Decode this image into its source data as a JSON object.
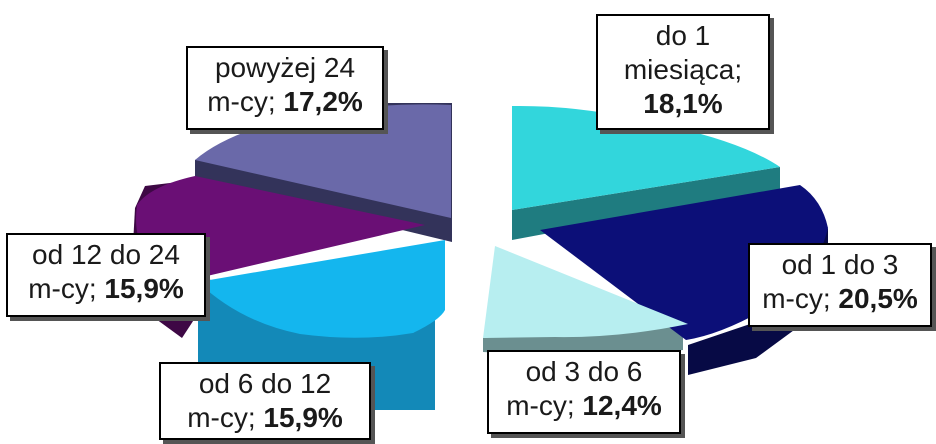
{
  "chart_data": {
    "type": "pie",
    "title": "",
    "slices": [
      {
        "id": "s1",
        "line1": "do 1",
        "line2": "miesiąca;",
        "value_text": "18,1%",
        "value": 18.1,
        "top": "#32d6dc",
        "side": "#1f7c80"
      },
      {
        "id": "s2",
        "line1": "od 1 do 3",
        "line2": "m-cy;",
        "value_text": "20,5%",
        "value": 20.5,
        "top": "#0c0f78",
        "side": "#070a45"
      },
      {
        "id": "s3",
        "line1": "od 3 do 6",
        "line2": "m-cy;",
        "value_text": "12,4%",
        "value": 12.4,
        "top": "#b7eef0",
        "side": "#6b8f90"
      },
      {
        "id": "s4",
        "line1": "od 6 do 12",
        "line2": "m-cy;",
        "value_text": "15,9%",
        "value": 15.9,
        "top": "#14b6ee",
        "side": "#1389b8"
      },
      {
        "id": "s5",
        "line1": "od 12 do 24",
        "line2": "m-cy;",
        "value_text": "15,9%",
        "value": 15.9,
        "top": "#6a0f75",
        "side": "#3e0845"
      },
      {
        "id": "s6",
        "line1": "powyżej 24",
        "line2": "m-cy;",
        "value_text": "17,2%",
        "value": 17.2,
        "top": "#6a69a9",
        "side": "#33335a"
      }
    ]
  }
}
